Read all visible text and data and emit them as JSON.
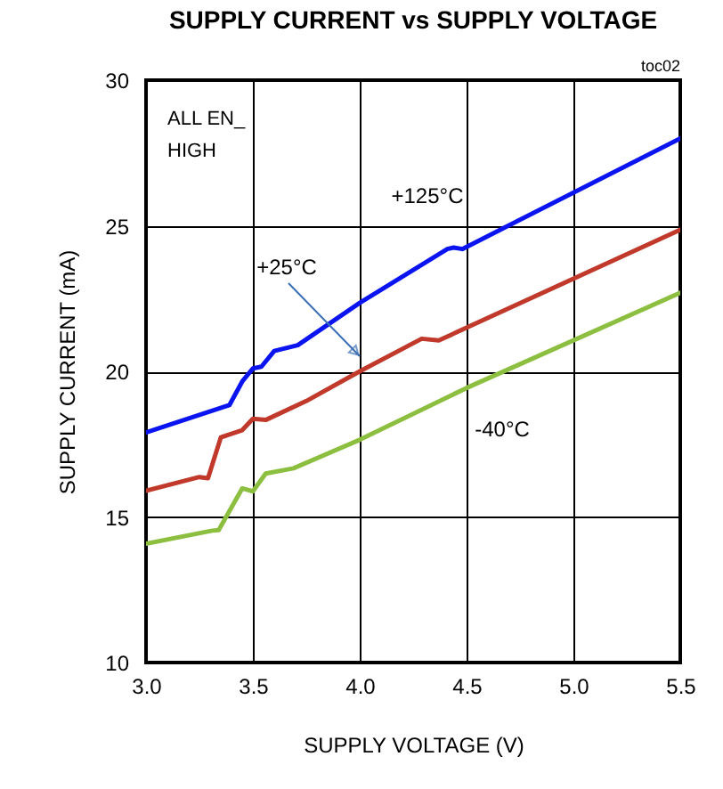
{
  "chart_data": {
    "type": "line",
    "title": "SUPPLY CURRENT vs SUPPLY VOLTAGE",
    "xlabel": "SUPPLY VOLTAGE (V)",
    "ylabel": "SUPPLY CURRENT (mA)",
    "annotations": [
      "toc02",
      "ALL EN_\nHIGH",
      "+125°C",
      "+25°C",
      "-40°C"
    ],
    "series": [
      {
        "color": "#0a14f0",
        "x": [
          3.0,
          3.39,
          3.45,
          3.5,
          3.54,
          3.6,
          3.71,
          4.0,
          4.41,
          4.44,
          4.48,
          5.5
        ],
        "values": [
          17.9,
          18.84,
          19.65,
          20.1,
          20.16,
          20.7,
          20.9,
          22.35,
          24.2,
          24.25,
          24.2,
          28.0
        ]
      },
      {
        "color": "#c0392b",
        "x": [
          3.0,
          3.25,
          3.29,
          3.35,
          3.45,
          3.5,
          3.56,
          3.75,
          4.0,
          4.29,
          4.37,
          5.5
        ],
        "values": [
          15.9,
          16.37,
          16.33,
          17.73,
          17.98,
          18.37,
          18.33,
          18.98,
          20.0,
          21.12,
          21.06,
          24.86
        ]
      },
      {
        "color": "#8cbf3f",
        "x": [
          3.0,
          3.31,
          3.34,
          3.45,
          3.5,
          3.56,
          3.69,
          4.0,
          4.5,
          5.5
        ],
        "values": [
          14.08,
          14.53,
          14.55,
          15.98,
          15.88,
          16.49,
          16.67,
          17.65,
          19.43,
          22.7
        ]
      }
    ],
    "xlim": [
      3.0,
      5.5
    ],
    "xticks": [
      {
        "value": 3,
        "label": "3.0"
      },
      3.5,
      {
        "value": 4,
        "label": "4.0"
      },
      4.5,
      {
        "value": 5,
        "label": "5.0"
      },
      5.5
    ],
    "ylim": [
      10,
      30
    ],
    "yticks": [
      10,
      15,
      20,
      25,
      30
    ],
    "grid": true,
    "line_style": "solid",
    "marker": "none"
  }
}
